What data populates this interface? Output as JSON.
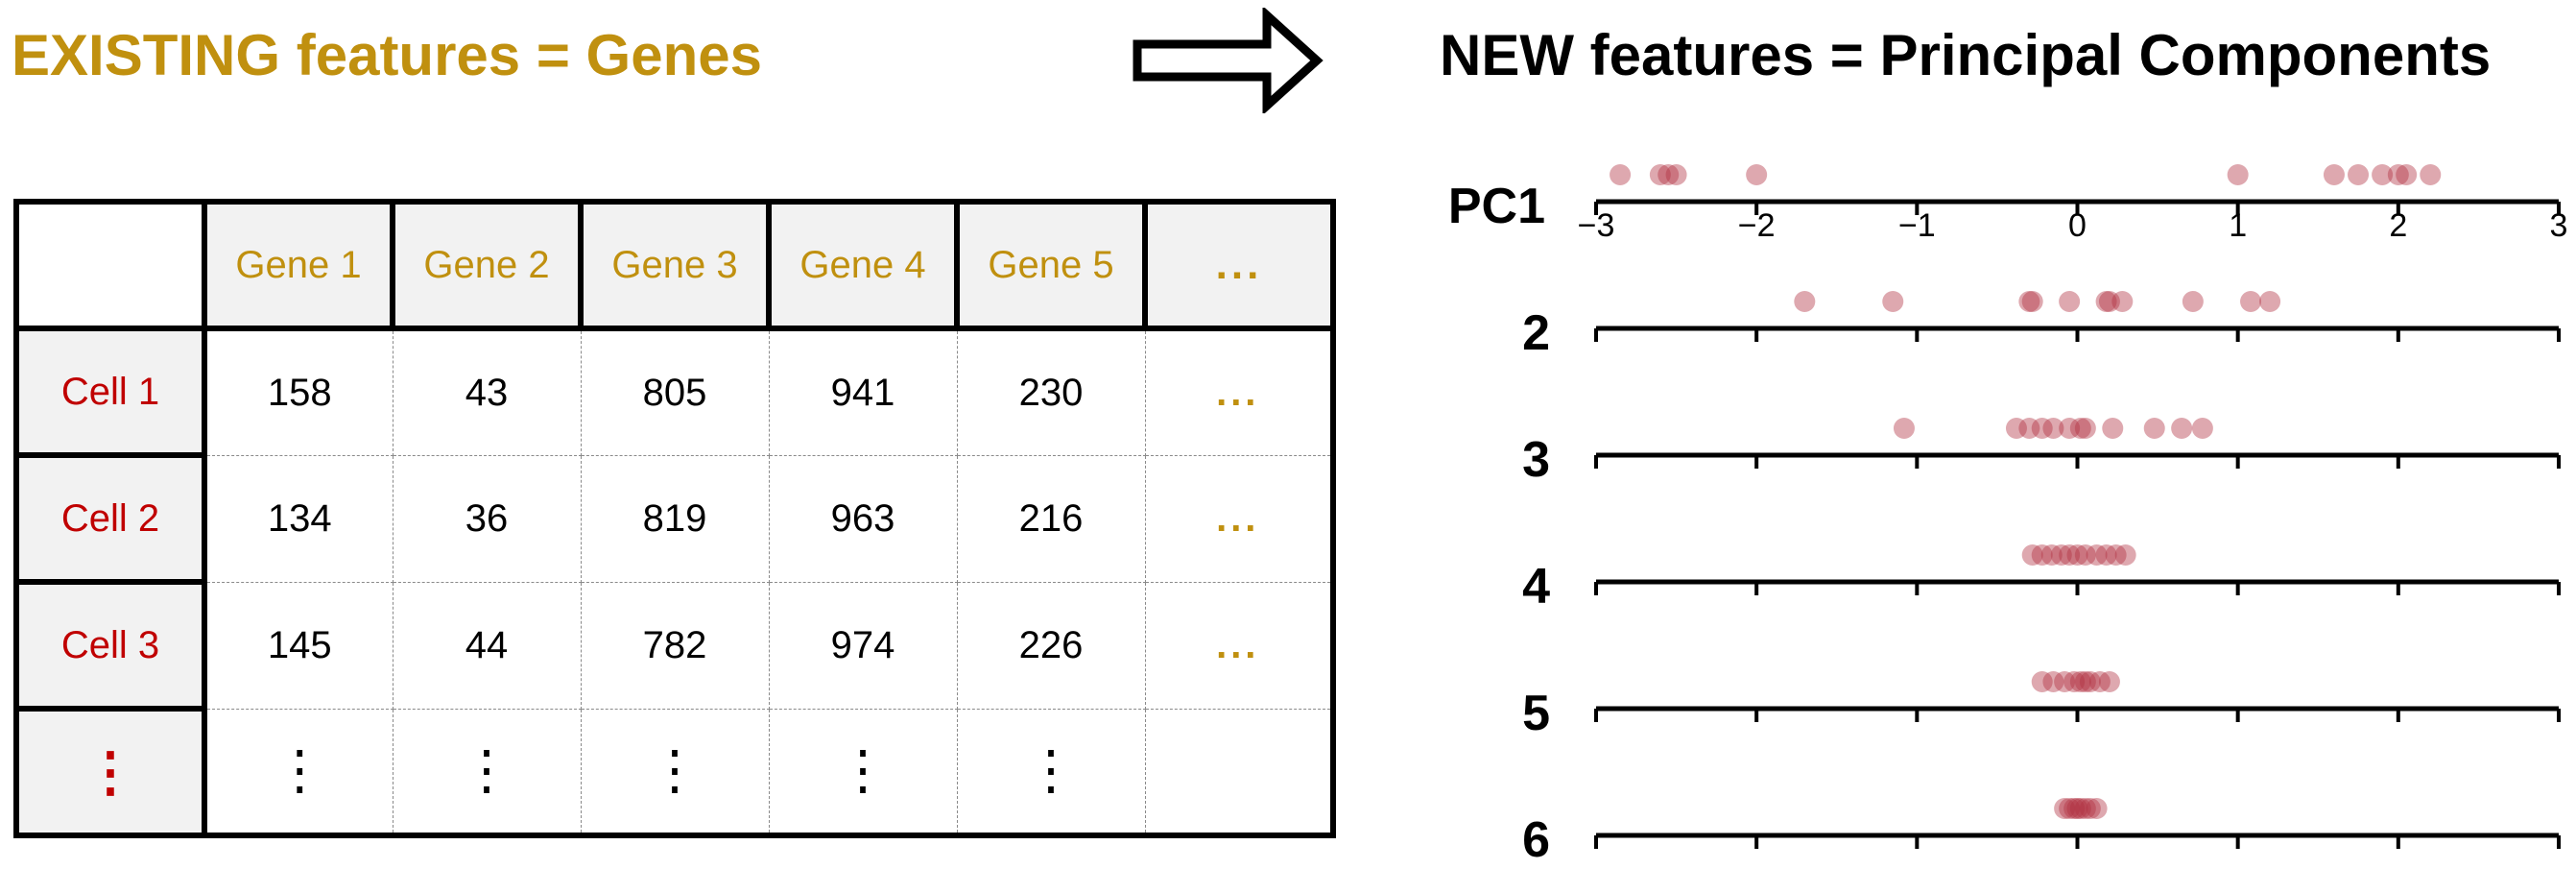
{
  "titles": {
    "left": "EXISTING features = Genes",
    "right": "NEW features = Principal Components"
  },
  "colors": {
    "gold": "#C0900F",
    "red": "#C00000",
    "dot": "#b03040"
  },
  "table": {
    "columns": [
      "Gene 1",
      "Gene 2",
      "Gene 3",
      "Gene 4",
      "Gene 5",
      "..."
    ],
    "rows": [
      {
        "label": "Cell 1",
        "values": [
          "158",
          "43",
          "805",
          "941",
          "230",
          "..."
        ]
      },
      {
        "label": "Cell 2",
        "values": [
          "134",
          "36",
          "819",
          "963",
          "216",
          "..."
        ]
      },
      {
        "label": "Cell 3",
        "values": [
          "145",
          "44",
          "782",
          "974",
          "226",
          "..."
        ]
      },
      {
        "label": "⋮",
        "values": [
          "⋮",
          "⋮",
          "⋮",
          "⋮",
          "⋮",
          ""
        ]
      }
    ]
  },
  "chart_data": {
    "type": "scatter",
    "xlim": [
      -3,
      3
    ],
    "x_ticks": [
      "−3",
      "−2",
      "−1",
      "0",
      "1",
      "2",
      "3"
    ],
    "components": [
      {
        "label": "PC1",
        "x": [
          -2.85,
          -2.6,
          -2.55,
          -2.5,
          -2.0,
          1.0,
          1.6,
          1.75,
          1.9,
          2.0,
          2.05,
          2.2
        ]
      },
      {
        "label": "2",
        "x": [
          -1.7,
          -1.15,
          -0.3,
          -0.28,
          -0.05,
          0.18,
          0.2,
          0.28,
          0.72,
          1.08,
          1.2
        ]
      },
      {
        "label": "3",
        "x": [
          -1.08,
          -0.38,
          -0.3,
          -0.22,
          -0.15,
          -0.05,
          0.02,
          0.05,
          0.22,
          0.48,
          0.65,
          0.78
        ]
      },
      {
        "label": "4",
        "x": [
          -0.28,
          -0.22,
          -0.16,
          -0.1,
          -0.05,
          0.0,
          0.05,
          0.12,
          0.18,
          0.24,
          0.3
        ]
      },
      {
        "label": "5",
        "x": [
          -0.22,
          -0.15,
          -0.08,
          -0.02,
          0.02,
          0.05,
          0.08,
          0.14,
          0.2
        ]
      },
      {
        "label": "6",
        "x": [
          -0.08,
          -0.05,
          -0.02,
          0.0,
          0.02,
          0.05,
          0.08,
          0.12
        ]
      }
    ]
  }
}
